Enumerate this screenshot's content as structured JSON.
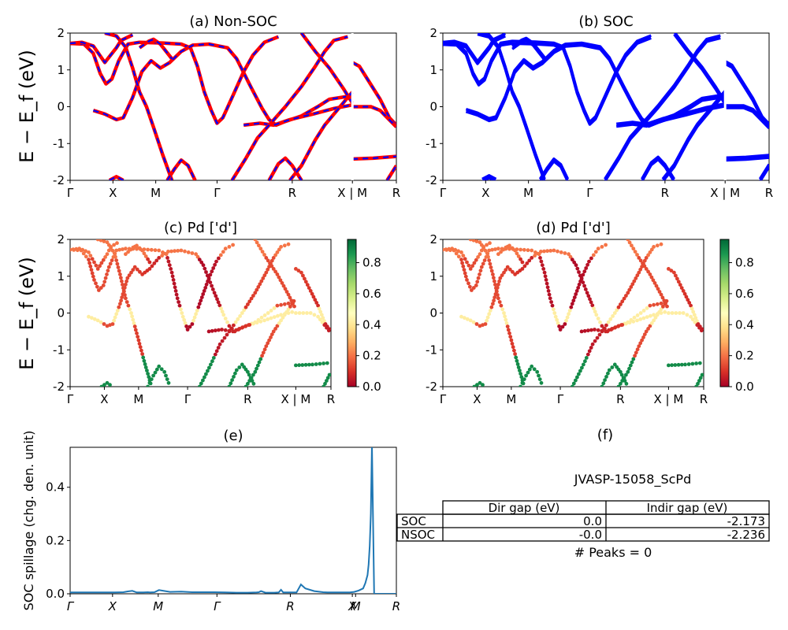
{
  "figure": {
    "ylabel": "E − E_f (eV)",
    "kpath_labels": [
      "Γ",
      "X",
      "M",
      "Γ",
      "R",
      "X | M",
      "R"
    ]
  },
  "chart_data": [
    {
      "id": "a",
      "type": "line",
      "title": "(a) Non-SOC",
      "ylim": [
        -2,
        2
      ],
      "yticks": [
        -2,
        -1,
        0,
        1,
        2
      ],
      "xtick_labels": [
        "Γ",
        "X",
        "M",
        "Γ",
        "R",
        "X | M",
        "R"
      ],
      "series": [
        {
          "color": "#ff0000",
          "style": "solid"
        },
        {
          "color": "#0000ff",
          "style": "dashed"
        }
      ],
      "bands": [
        [
          [
            0,
            1.72
          ],
          [
            0.06,
            1.7
          ],
          [
            0.1,
            1.45
          ],
          [
            0.13,
            0.9
          ],
          [
            0.155,
            0.62
          ],
          [
            0.18,
            0.75
          ],
          [
            0.21,
            1.25
          ],
          [
            0.25,
            1.7
          ],
          [
            0.3,
            1.75
          ],
          [
            0.4,
            1.73
          ],
          [
            0.48,
            1.7
          ],
          [
            0.52,
            1.6
          ],
          [
            0.55,
            1.1
          ],
          [
            0.58,
            0.4
          ],
          [
            0.61,
            -0.1
          ],
          [
            0.635,
            -0.45
          ],
          [
            0.66,
            -0.3
          ],
          [
            0.7,
            0.25
          ],
          [
            0.75,
            0.95
          ],
          [
            0.79,
            1.4
          ],
          [
            0.84,
            1.75
          ],
          [
            0.9,
            1.9
          ]
        ],
        [
          [
            0,
            1.72
          ],
          [
            0.05,
            1.75
          ],
          [
            0.1,
            1.65
          ],
          [
            0.15,
            1.2
          ],
          [
            0.2,
            1.6
          ],
          [
            0.22,
            1.8
          ],
          [
            0.27,
            1.95
          ]
        ],
        [
          [
            0.1,
            -0.1
          ],
          [
            0.15,
            -0.2
          ],
          [
            0.2,
            -0.35
          ],
          [
            0.23,
            -0.3
          ],
          [
            0.27,
            0.25
          ],
          [
            0.31,
            0.95
          ],
          [
            0.35,
            1.25
          ],
          [
            0.39,
            1.05
          ],
          [
            0.43,
            1.2
          ],
          [
            0.48,
            1.5
          ],
          [
            0.53,
            1.67
          ],
          [
            0.6,
            1.7
          ],
          [
            0.68,
            1.6
          ],
          [
            0.72,
            1.3
          ],
          [
            0.78,
            0.55
          ],
          [
            0.83,
            -0.05
          ],
          [
            0.86,
            -0.35
          ],
          [
            0.89,
            -0.5
          ],
          [
            0.93,
            -0.4
          ],
          [
            1.0,
            -0.25
          ],
          [
            1.07,
            0.0
          ],
          [
            1.12,
            0.2
          ],
          [
            1.22,
            0.3
          ]
        ],
        [
          [
            0.15,
            2.0
          ],
          [
            0.2,
            1.92
          ],
          [
            0.24,
            1.62
          ],
          [
            0.27,
            1.05
          ],
          [
            0.3,
            0.4
          ],
          [
            0.33,
            0.0
          ],
          [
            0.36,
            -0.55
          ],
          [
            0.4,
            -1.3
          ],
          [
            0.44,
            -2.0
          ]
        ],
        [
          [
            0.3,
            1.6
          ],
          [
            0.34,
            1.78
          ],
          [
            0.36,
            1.83
          ],
          [
            0.39,
            1.7
          ],
          [
            0.44,
            1.3
          ]
        ],
        [
          [
            0.17,
            -2.0
          ],
          [
            0.2,
            -1.9
          ],
          [
            0.23,
            -2.0
          ]
        ],
        [
          [
            0.42,
            -2.0
          ],
          [
            0.45,
            -1.7
          ],
          [
            0.48,
            -1.45
          ],
          [
            0.51,
            -1.6
          ],
          [
            0.54,
            -2.0
          ]
        ],
        [
          [
            0.86,
            -2.0
          ],
          [
            0.9,
            -1.55
          ],
          [
            0.93,
            -1.4
          ],
          [
            0.96,
            -1.6
          ],
          [
            1.0,
            -2.0
          ]
        ],
        [
          [
            0.75,
            -0.5
          ],
          [
            0.82,
            -0.45
          ],
          [
            0.88,
            -0.5
          ],
          [
            0.95,
            -0.35
          ],
          [
            1.05,
            -0.2
          ],
          [
            1.14,
            -0.05
          ],
          [
            1.22,
            0.05
          ]
        ],
        [
          [
            0.7,
            -2.0
          ],
          [
            0.76,
            -1.4
          ],
          [
            0.81,
            -0.85
          ],
          [
            0.86,
            -0.5
          ],
          [
            0.93,
            0.0
          ],
          [
            1.0,
            0.55
          ],
          [
            1.06,
            1.1
          ],
          [
            1.1,
            1.5
          ],
          [
            1.14,
            1.8
          ],
          [
            1.2,
            1.9
          ]
        ],
        [
          [
            0.95,
            -2.0
          ],
          [
            1.0,
            -1.6
          ],
          [
            1.06,
            -0.9
          ],
          [
            1.1,
            -0.5
          ],
          [
            1.16,
            -0.05
          ],
          [
            1.22,
            0.4
          ]
        ],
        [
          [
            1.0,
            2.0
          ],
          [
            1.06,
            1.5
          ],
          [
            1.12,
            1.05
          ],
          [
            1.18,
            0.5
          ],
          [
            1.22,
            0.1
          ]
        ],
        [
          [
            1.22,
            1.2
          ],
          [
            1.25,
            1.1
          ],
          [
            1.3,
            0.6
          ],
          [
            1.34,
            0.2
          ],
          [
            1.38,
            -0.3
          ],
          [
            1.41,
            -0.5
          ]
        ],
        [
          [
            1.22,
            0.0
          ],
          [
            1.3,
            0.0
          ],
          [
            1.34,
            -0.1
          ],
          [
            1.41,
            -0.55
          ]
        ],
        [
          [
            1.22,
            -1.42
          ],
          [
            1.31,
            -1.4
          ],
          [
            1.41,
            -1.35
          ]
        ],
        [
          [
            1.37,
            -2.0
          ],
          [
            1.41,
            -1.6
          ]
        ]
      ]
    },
    {
      "id": "b",
      "type": "line",
      "title": "(b) SOC",
      "ylim": [
        -2,
        2
      ],
      "yticks": [
        -2,
        -1,
        0,
        1,
        2
      ],
      "xtick_labels": [
        "Γ",
        "X",
        "M",
        "Γ",
        "R",
        "X | M",
        "R"
      ],
      "series": [
        {
          "color": "#0000ff",
          "style": "solid"
        }
      ],
      "doubled_bands": true
    },
    {
      "id": "c",
      "type": "scatter",
      "title": "(c)  Pd ['d']",
      "ylim": [
        -2,
        2
      ],
      "yticks": [
        -2,
        -1,
        0,
        1,
        2
      ],
      "xtick_labels": [
        "Γ",
        "X",
        "M",
        "Γ",
        "R",
        "X | M",
        "R"
      ],
      "colorbar": {
        "range": [
          0,
          0.95
        ],
        "ticks": [
          "0.0",
          "0.2",
          "0.4",
          "0.6",
          "0.8"
        ],
        "colormap": "RdYlGn"
      }
    },
    {
      "id": "d",
      "type": "scatter",
      "title": "(d) Pd ['d']",
      "ylim": [
        -2,
        2
      ],
      "yticks": [
        -2,
        -1,
        0,
        1,
        2
      ],
      "xtick_labels": [
        "Γ",
        "X",
        "M",
        "Γ",
        "R",
        "X | M",
        "R"
      ],
      "colorbar": {
        "range": [
          0,
          0.95
        ],
        "ticks": [
          "0.0",
          "0.2",
          "0.4",
          "0.6",
          "0.8"
        ],
        "colormap": "RdYlGn"
      }
    },
    {
      "id": "e",
      "type": "line",
      "title": "(e)",
      "ylabel": "SOC spillage (chg. den. unit)",
      "ylim": [
        0,
        0.55
      ],
      "yticks": [
        "0.0",
        "0.2",
        "0.4"
      ],
      "xtick_labels": [
        "Γ",
        "X",
        "M",
        "Γ",
        "R",
        "X",
        "M",
        "R"
      ],
      "x": [
        0,
        0.05,
        0.1,
        0.15,
        0.2,
        0.24,
        0.26,
        0.28,
        0.3,
        0.33,
        0.35,
        0.36,
        0.38,
        0.4,
        0.45,
        0.5,
        0.55,
        0.6,
        0.65,
        0.7,
        0.75,
        0.8,
        0.84,
        0.85,
        0.86,
        0.88,
        0.9,
        0.92,
        0.94,
        0.95,
        0.96,
        1.0,
        1.02,
        1.04,
        1.06,
        1.1,
        1.14,
        1.16,
        1.18,
        1.2,
        1.22,
        1.26,
        1.28,
        1.3,
        1.32,
        1.33,
        1.34,
        1.345,
        1.35,
        1.355,
        1.36,
        1.37,
        1.4,
        1.44,
        1.47
      ],
      "values": [
        0.005,
        0.005,
        0.005,
        0.005,
        0.005,
        0.006,
        0.009,
        0.011,
        0.005,
        0.005,
        0.006,
        0.005,
        0.006,
        0.014,
        0.007,
        0.008,
        0.006,
        0.006,
        0.006,
        0.005,
        0.004,
        0.004,
        0.005,
        0.006,
        0.01,
        0.004,
        0.004,
        0.004,
        0.005,
        0.015,
        0.005,
        0.005,
        0.005,
        0.035,
        0.02,
        0.01,
        0.006,
        0.005,
        0.005,
        0.005,
        0.005,
        0.005,
        0.007,
        0.012,
        0.02,
        0.04,
        0.07,
        0.11,
        0.18,
        0.3,
        0.56,
        0.0,
        0.0,
        0.0,
        0.0
      ]
    },
    {
      "id": "f",
      "type": "table",
      "title": "(f)",
      "subtitle": "JVASP-15058_ScPd",
      "columns": [
        "Dir gap (eV)",
        "Indir gap (eV)"
      ],
      "rows": [
        {
          "label": "SOC",
          "values": [
            "0.0",
            "-2.173"
          ]
        },
        {
          "label": "NSOC",
          "values": [
            "-0.0",
            "-2.236"
          ]
        }
      ],
      "footer": "# Peaks = 0"
    }
  ]
}
